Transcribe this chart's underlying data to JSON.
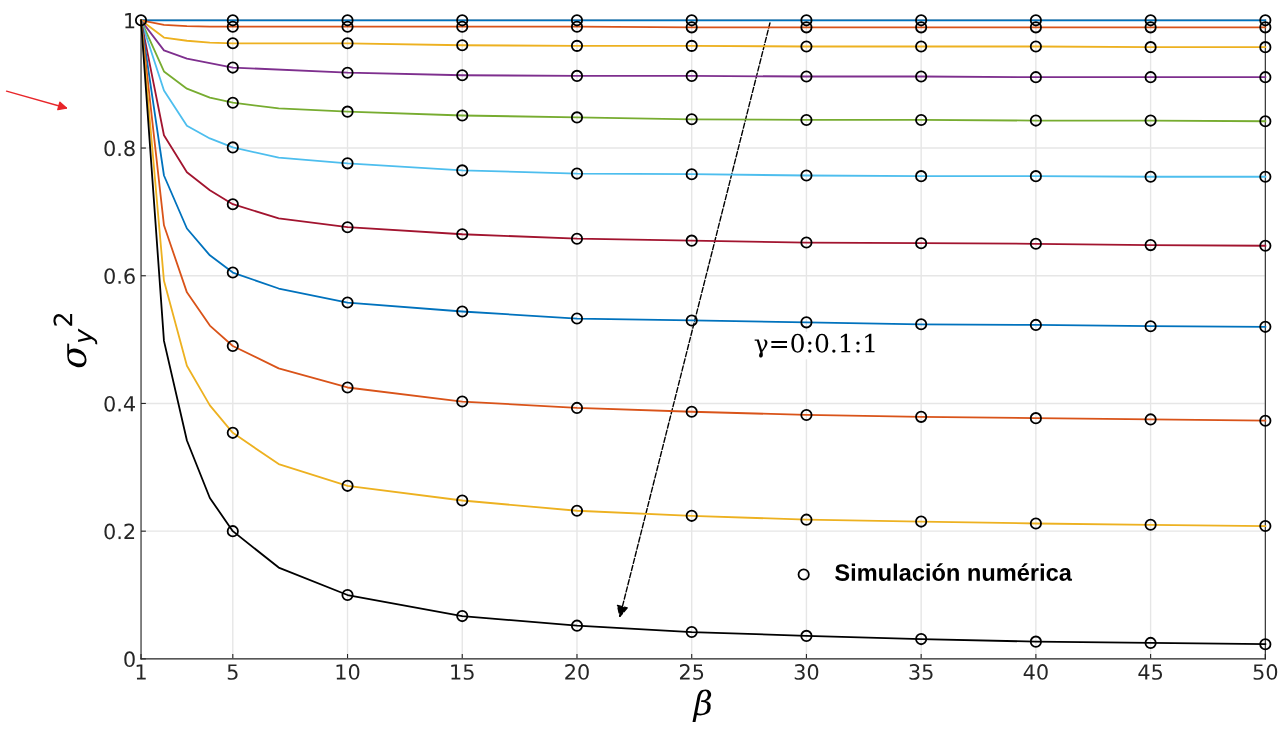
{
  "chart_data": {
    "type": "line",
    "xlabel": "β",
    "ylabel": "σ$_{y}$$^{2}$",
    "xlim": [
      1,
      50
    ],
    "ylim": [
      0,
      1
    ],
    "xticks": [
      1,
      5,
      10,
      15,
      20,
      25,
      30,
      35,
      40,
      45,
      50
    ],
    "yticks": [
      0,
      0.2,
      0.4,
      0.6,
      0.8,
      1
    ],
    "grid": true,
    "legend": "bottom right",
    "marker": "none",
    "line_style": "solid",
    "annotations": [
      "γ=0:0.1:1"
    ],
    "series": [
      {
        "color": "#0072bd",
        "x": [
          1,
          2,
          3,
          4,
          5,
          10,
          15,
          20,
          25,
          30,
          35,
          40,
          45,
          50
        ],
        "values": [
          1,
          1,
          1,
          1,
          1,
          1,
          1,
          1,
          1,
          1,
          1,
          1,
          1,
          1
        ]
      },
      {
        "color": "#d95319",
        "x": [
          1,
          2,
          3,
          4,
          5,
          10,
          15,
          20,
          25,
          30,
          35,
          40,
          45,
          50
        ],
        "values": [
          1,
          0.993,
          0.991,
          0.99,
          0.99,
          0.99,
          0.99,
          0.99,
          0.989,
          0.989,
          0.989,
          0.989,
          0.989,
          0.989
        ]
      },
      {
        "color": "#edb120",
        "x": [
          1,
          2,
          3,
          4,
          5,
          10,
          15,
          20,
          25,
          30,
          35,
          40,
          45,
          50
        ],
        "values": [
          1,
          0.973,
          0.968,
          0.965,
          0.964,
          0.964,
          0.961,
          0.96,
          0.96,
          0.959,
          0.959,
          0.959,
          0.958,
          0.958
        ]
      },
      {
        "color": "#7e2f8e",
        "x": [
          1,
          2,
          3,
          4,
          5,
          10,
          15,
          20,
          25,
          30,
          35,
          40,
          45,
          50
        ],
        "values": [
          1,
          0.953,
          0.94,
          0.933,
          0.926,
          0.918,
          0.914,
          0.913,
          0.913,
          0.912,
          0.912,
          0.911,
          0.911,
          0.911
        ]
      },
      {
        "color": "#77ac30",
        "x": [
          1,
          2,
          3,
          4,
          5,
          7,
          10,
          15,
          20,
          25,
          30,
          35,
          40,
          45,
          50
        ],
        "values": [
          1,
          0.92,
          0.893,
          0.879,
          0.871,
          0.862,
          0.857,
          0.851,
          0.848,
          0.845,
          0.844,
          0.844,
          0.843,
          0.843,
          0.842
        ]
      },
      {
        "color": "#4dbeee",
        "x": [
          1,
          2,
          3,
          4,
          5,
          7,
          10,
          15,
          20,
          25,
          30,
          35,
          40,
          45,
          50
        ],
        "values": [
          1,
          0.89,
          0.835,
          0.815,
          0.801,
          0.785,
          0.776,
          0.765,
          0.76,
          0.759,
          0.757,
          0.756,
          0.756,
          0.755,
          0.755
        ]
      },
      {
        "color": "#a2142f",
        "x": [
          1,
          2,
          3,
          4,
          5,
          7,
          10,
          15,
          20,
          25,
          30,
          35,
          40,
          45,
          50
        ],
        "values": [
          1,
          0.82,
          0.762,
          0.734,
          0.712,
          0.69,
          0.676,
          0.665,
          0.658,
          0.655,
          0.652,
          0.651,
          0.65,
          0.648,
          0.647
        ]
      },
      {
        "color": "#0072bd",
        "x": [
          1,
          2,
          3,
          4,
          5,
          7,
          10,
          15,
          20,
          25,
          30,
          35,
          40,
          45,
          50
        ],
        "values": [
          1,
          0.757,
          0.674,
          0.632,
          0.605,
          0.58,
          0.558,
          0.544,
          0.533,
          0.53,
          0.527,
          0.524,
          0.523,
          0.521,
          0.52
        ]
      },
      {
        "color": "#d95319",
        "x": [
          1,
          2,
          3,
          4,
          5,
          7,
          10,
          15,
          20,
          25,
          30,
          35,
          40,
          45,
          50
        ],
        "values": [
          1,
          0.679,
          0.574,
          0.522,
          0.49,
          0.455,
          0.425,
          0.403,
          0.393,
          0.387,
          0.382,
          0.379,
          0.377,
          0.375,
          0.373
        ]
      },
      {
        "color": "#edb120",
        "x": [
          1,
          2,
          3,
          4,
          5,
          7,
          10,
          15,
          20,
          25,
          30,
          35,
          40,
          45,
          50
        ],
        "values": [
          1,
          0.592,
          0.459,
          0.397,
          0.354,
          0.305,
          0.271,
          0.248,
          0.232,
          0.224,
          0.218,
          0.215,
          0.212,
          0.21,
          0.208
        ]
      },
      {
        "color": "#000000",
        "x": [
          1,
          2,
          3,
          4,
          5,
          7,
          10,
          15,
          20,
          25,
          30,
          35,
          40,
          45,
          50
        ],
        "values": [
          1,
          0.498,
          0.342,
          0.252,
          0.2,
          0.143,
          0.1,
          0.067,
          0.052,
          0.042,
          0.036,
          0.031,
          0.027,
          0.025,
          0.023
        ]
      },
      {
        "type": "scatter",
        "marker": "circle",
        "name": "Simulación numérica",
        "color": "#000000",
        "x": [
          1,
          5,
          10,
          15,
          20,
          25,
          30,
          35,
          40,
          45,
          50,
          5,
          10,
          15,
          20,
          25,
          30,
          35,
          40,
          45,
          50,
          5,
          10,
          15,
          20,
          25,
          30,
          35,
          40,
          45,
          50,
          5,
          10,
          15,
          20,
          25,
          30,
          35,
          40,
          45,
          50,
          5,
          10,
          15,
          20,
          25,
          30,
          35,
          40,
          45,
          50,
          5,
          10,
          15,
          20,
          25,
          30,
          35,
          40,
          45,
          50,
          5,
          10,
          15,
          20,
          25,
          30,
          35,
          40,
          45,
          50,
          5,
          10,
          15,
          20,
          25,
          30,
          35,
          40,
          45,
          50,
          5,
          10,
          15,
          20,
          25,
          30,
          35,
          40,
          45,
          50,
          5,
          10,
          15,
          20,
          25,
          30,
          35,
          40,
          45,
          50,
          5,
          10,
          15,
          20,
          25,
          30,
          35,
          40,
          45,
          50
        ],
        "values": [
          1,
          1,
          1,
          1,
          1,
          1,
          1,
          1,
          1,
          1,
          1,
          0.99,
          0.99,
          0.99,
          0.99,
          0.989,
          0.989,
          0.989,
          0.989,
          0.989,
          0.989,
          0.964,
          0.964,
          0.961,
          0.96,
          0.96,
          0.959,
          0.959,
          0.959,
          0.958,
          0.958,
          0.926,
          0.918,
          0.914,
          0.913,
          0.913,
          0.912,
          0.912,
          0.911,
          0.911,
          0.911,
          0.871,
          0.857,
          0.851,
          0.848,
          0.845,
          0.844,
          0.844,
          0.843,
          0.843,
          0.842,
          0.801,
          0.776,
          0.765,
          0.76,
          0.759,
          0.757,
          0.756,
          0.756,
          0.755,
          0.755,
          0.712,
          0.676,
          0.665,
          0.658,
          0.655,
          0.652,
          0.651,
          0.65,
          0.648,
          0.647,
          0.605,
          0.558,
          0.544,
          0.533,
          0.53,
          0.527,
          0.524,
          0.523,
          0.521,
          0.52,
          0.49,
          0.425,
          0.403,
          0.393,
          0.387,
          0.382,
          0.379,
          0.377,
          0.375,
          0.373,
          0.354,
          0.271,
          0.248,
          0.232,
          0.224,
          0.218,
          0.215,
          0.212,
          0.21,
          0.208,
          0.2,
          0.1,
          0.067,
          0.052,
          0.042,
          0.036,
          0.031,
          0.027,
          0.025,
          0.023
        ]
      }
    ]
  }
}
